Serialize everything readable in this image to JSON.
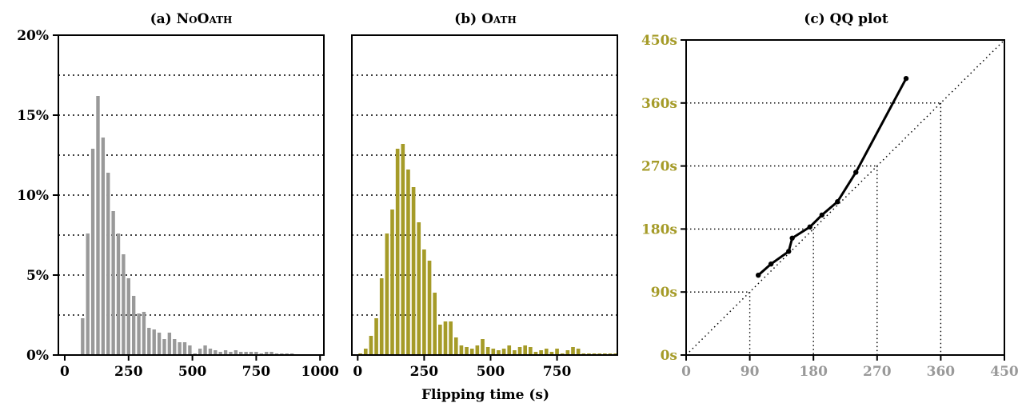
{
  "colors": {
    "nooath": "#999999",
    "oath": "#a59b28",
    "axis": "#000000",
    "qq_x_ticks": "#999999",
    "qq_y_ticks": "#a59b28"
  },
  "xlabel": "Flipping time (s)",
  "chart_data": [
    {
      "type": "bar",
      "panel": "a",
      "title": "(a) NoOath",
      "title_prefix": "(a)",
      "title_name": "NoOath",
      "bin_width": 20,
      "x": [
        60,
        80,
        100,
        120,
        140,
        160,
        180,
        200,
        220,
        240,
        260,
        280,
        300,
        320,
        340,
        360,
        380,
        400,
        420,
        440,
        460,
        480,
        500,
        520,
        540,
        560,
        580,
        600,
        620,
        640,
        660,
        680,
        700,
        720,
        740,
        760,
        780,
        800,
        820,
        840,
        860,
        880,
        900,
        920,
        940,
        960,
        980
      ],
      "values": [
        2.3,
        7.6,
        12.9,
        16.2,
        13.6,
        11.4,
        9.0,
        7.6,
        6.3,
        4.8,
        3.7,
        2.6,
        2.7,
        1.7,
        1.6,
        1.4,
        1.0,
        1.4,
        1.0,
        0.8,
        0.8,
        0.6,
        0.1,
        0.4,
        0.6,
        0.4,
        0.3,
        0.2,
        0.3,
        0.2,
        0.3,
        0.2,
        0.2,
        0.2,
        0.2,
        0.1,
        0.2,
        0.2,
        0.1,
        0.1,
        0.1,
        0.1,
        0.05,
        0.05,
        0.05,
        0.05,
        0.05
      ],
      "xlim": [
        -25,
        1015
      ],
      "ylim": [
        0,
        20
      ],
      "xticks": [
        0,
        250,
        500,
        750,
        1000
      ],
      "xtick_labels": [
        "0",
        "250",
        "500",
        "750",
        "1000"
      ],
      "yticks": [
        0,
        5,
        10,
        15,
        20
      ],
      "ytick_labels": [
        "0%",
        "5%",
        "10%",
        "15%",
        "20%"
      ],
      "gridlines_y": [
        2.5,
        5,
        7.5,
        10,
        12.5,
        15,
        17.5
      ],
      "grid": "horizontal dotted"
    },
    {
      "type": "bar",
      "panel": "b",
      "title": "(b) Oath",
      "title_prefix": "(b)",
      "title_name": "Oath",
      "bin_width": 20,
      "x": [
        0,
        20,
        40,
        60,
        80,
        100,
        120,
        140,
        160,
        180,
        200,
        220,
        240,
        260,
        280,
        300,
        320,
        340,
        360,
        380,
        400,
        420,
        440,
        460,
        480,
        500,
        520,
        540,
        560,
        580,
        600,
        620,
        640,
        660,
        680,
        700,
        720,
        740,
        760,
        780,
        800,
        820,
        840,
        860,
        880,
        900,
        920,
        940,
        960
      ],
      "values": [
        0.1,
        0.4,
        1.2,
        2.3,
        4.8,
        7.6,
        9.1,
        12.9,
        13.2,
        11.6,
        10.5,
        8.3,
        6.6,
        5.9,
        3.9,
        1.9,
        2.1,
        2.1,
        1.1,
        0.6,
        0.5,
        0.4,
        0.6,
        1.0,
        0.5,
        0.4,
        0.3,
        0.4,
        0.6,
        0.3,
        0.5,
        0.6,
        0.5,
        0.2,
        0.3,
        0.4,
        0.2,
        0.4,
        0.1,
        0.3,
        0.5,
        0.4,
        0.1,
        0.1,
        0.1,
        0.1,
        0.1,
        0.1,
        0.1
      ],
      "xlim": [
        -22,
        977
      ],
      "ylim": [
        0,
        20
      ],
      "xticks": [
        0,
        250,
        500,
        750
      ],
      "xtick_labels": [
        "0",
        "250",
        "500",
        "750"
      ],
      "gridlines_y": [
        2.5,
        5,
        7.5,
        10,
        12.5,
        15,
        17.5
      ],
      "grid": "horizontal dotted"
    },
    {
      "type": "line",
      "panel": "c",
      "title": "(c) QQ plot",
      "x": [
        102,
        120,
        145,
        150,
        175,
        192,
        214,
        240,
        311
      ],
      "y": [
        114,
        130,
        148,
        167,
        183,
        200,
        219,
        261,
        395
      ],
      "xlim": [
        0,
        450
      ],
      "ylim": [
        0,
        450
      ],
      "xticks": [
        0,
        90,
        180,
        270,
        360,
        450
      ],
      "xtick_labels": [
        "0",
        "90",
        "180",
        "270",
        "360",
        "450"
      ],
      "yticks": [
        0,
        90,
        180,
        270,
        360,
        450
      ],
      "ytick_labels": [
        "0s",
        "90s",
        "180s",
        "270s",
        "360s",
        "450s"
      ],
      "reference_line": "y = x, dotted",
      "guide_lines": [
        90,
        180,
        270,
        360
      ]
    }
  ]
}
